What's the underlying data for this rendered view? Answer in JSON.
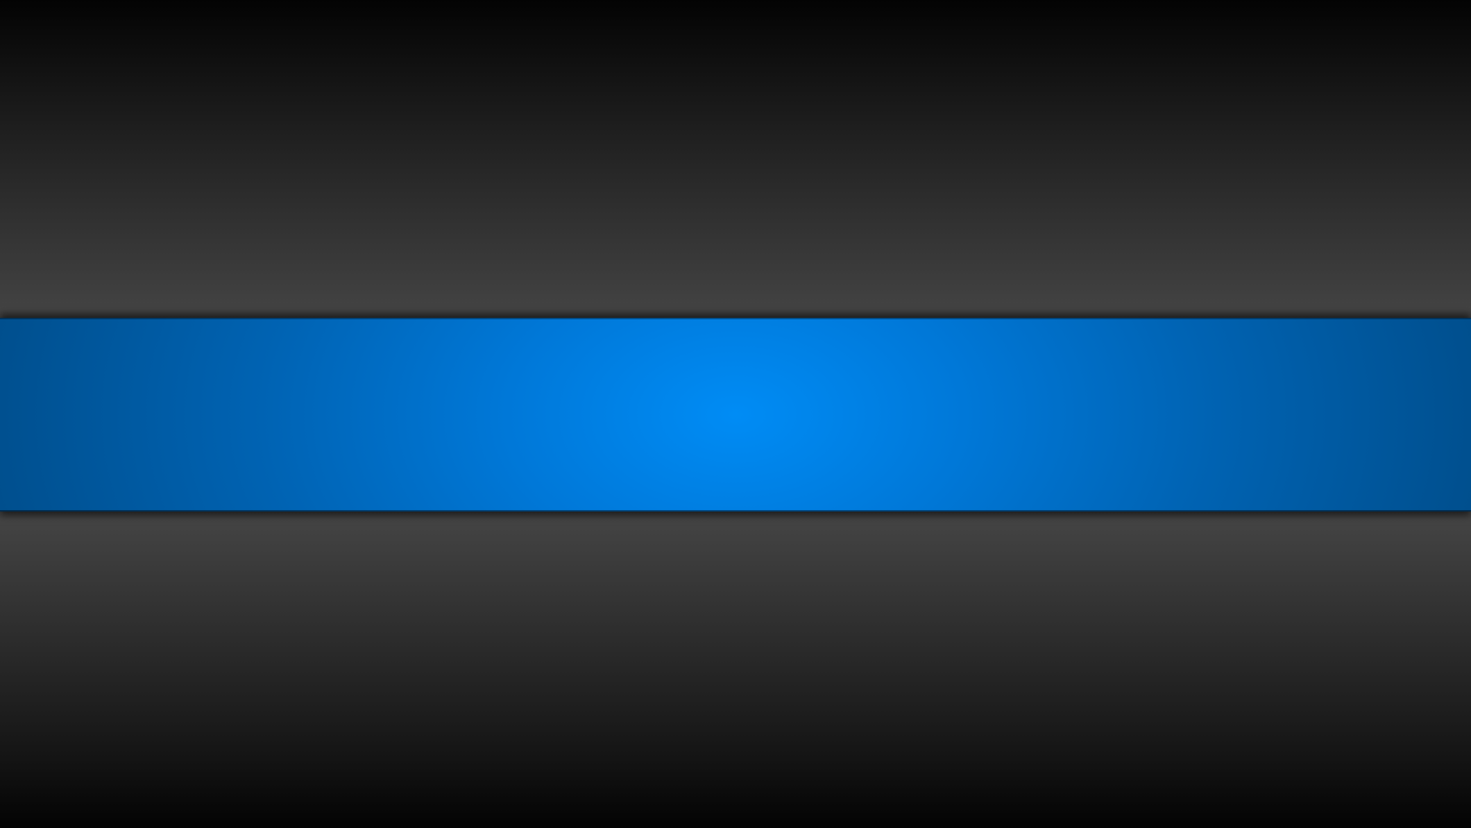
{
  "colors": {
    "background_dark": "#030303",
    "background_mid": "#454545",
    "band_center": "#008cf5",
    "band_edge": "#004e8c"
  }
}
